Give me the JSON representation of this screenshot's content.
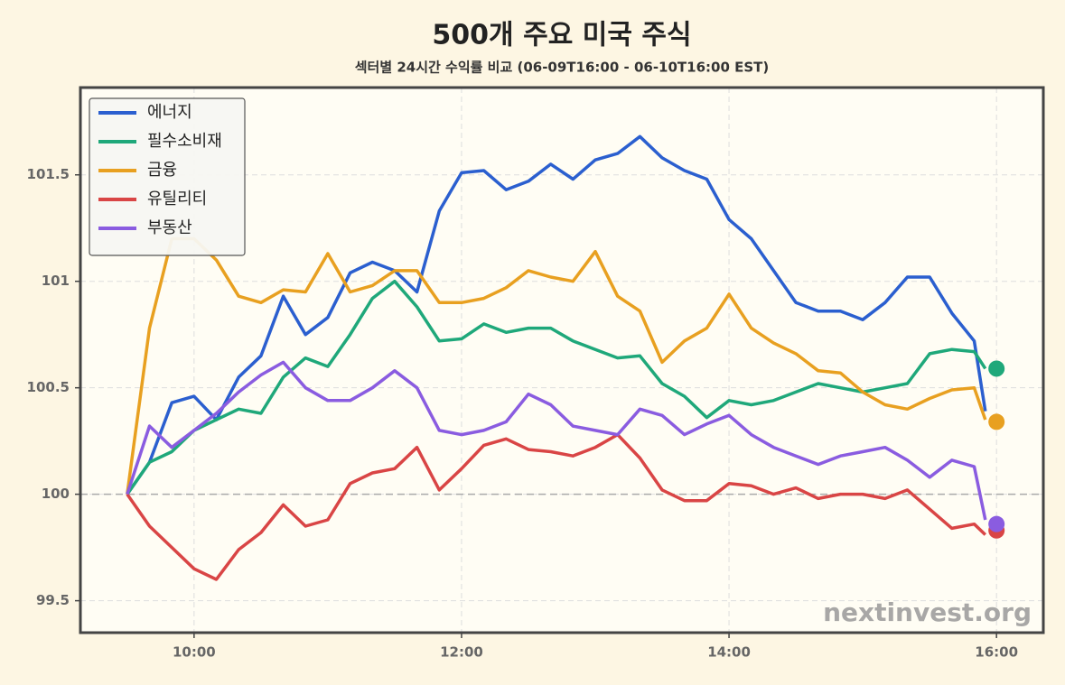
{
  "chart_data": {
    "type": "line",
    "title": "500개 주요 미국 주식",
    "subtitle": "섹터별 24시간 수익률 비교 (06-09T16:00 - 06-10T16:00 EST)",
    "watermark": "nextinvest.org",
    "x": [
      "09:30",
      "09:40",
      "09:50",
      "10:00",
      "10:10",
      "10:20",
      "10:30",
      "10:40",
      "10:50",
      "11:00",
      "11:10",
      "11:20",
      "11:30",
      "11:40",
      "11:50",
      "12:00",
      "12:10",
      "12:20",
      "12:30",
      "12:40",
      "12:50",
      "13:00",
      "13:10",
      "13:20",
      "13:30",
      "13:40",
      "13:50",
      "14:00",
      "14:10",
      "14:20",
      "14:30",
      "14:40",
      "14:50",
      "15:00",
      "15:10",
      "15:20",
      "15:30",
      "15:40",
      "15:50",
      "15:55"
    ],
    "xlim": [
      "09:09",
      "16:21"
    ],
    "xticks": [
      "10:00",
      "12:00",
      "14:00",
      "16:00"
    ],
    "ylim": [
      99.35,
      101.91
    ],
    "yticks": [
      99.5,
      100.0,
      100.5,
      101.0,
      101.5
    ],
    "baseline": 100.0,
    "grid": true,
    "legend": "upper-left",
    "end_x": "16:00",
    "series": [
      {
        "name": "에너지",
        "color": "#2b5fcf",
        "values": [
          100.0,
          100.15,
          100.43,
          100.46,
          100.35,
          100.55,
          100.65,
          100.93,
          100.75,
          100.83,
          101.04,
          101.09,
          101.05,
          100.95,
          101.33,
          101.51,
          101.52,
          101.43,
          101.47,
          101.55,
          101.48,
          101.57,
          101.6,
          101.68,
          101.58,
          101.52,
          101.48,
          101.29,
          101.2,
          101.05,
          100.9,
          100.86,
          100.86,
          100.82,
          100.9,
          101.02,
          101.02,
          100.85,
          100.72,
          100.39
        ]
      },
      {
        "name": "필수소비재",
        "color": "#1fa87a",
        "end_value": 100.59,
        "values": [
          100.0,
          100.15,
          100.2,
          100.3,
          100.35,
          100.4,
          100.38,
          100.55,
          100.64,
          100.6,
          100.75,
          100.92,
          101.0,
          100.88,
          100.72,
          100.73,
          100.8,
          100.76,
          100.78,
          100.78,
          100.72,
          100.68,
          100.64,
          100.65,
          100.52,
          100.46,
          100.36,
          100.44,
          100.42,
          100.44,
          100.48,
          100.52,
          100.5,
          100.48,
          100.5,
          100.52,
          100.66,
          100.68,
          100.67,
          100.59
        ]
      },
      {
        "name": "금융",
        "color": "#e8a020",
        "end_value": 100.34,
        "values": [
          100.0,
          100.78,
          101.2,
          101.2,
          101.1,
          100.93,
          100.9,
          100.96,
          100.95,
          101.13,
          100.95,
          100.98,
          101.05,
          101.05,
          100.9,
          100.9,
          100.92,
          100.97,
          101.05,
          101.02,
          101.0,
          101.14,
          100.93,
          100.86,
          100.62,
          100.72,
          100.78,
          100.94,
          100.78,
          100.71,
          100.66,
          100.58,
          100.57,
          100.48,
          100.42,
          100.4,
          100.45,
          100.49,
          100.5,
          100.35
        ]
      },
      {
        "name": "유틸리티",
        "color": "#d94545",
        "end_value": 99.83,
        "values": [
          100.0,
          99.85,
          99.75,
          99.65,
          99.6,
          99.74,
          99.82,
          99.95,
          99.85,
          99.88,
          100.05,
          100.1,
          100.12,
          100.22,
          100.02,
          100.12,
          100.23,
          100.26,
          100.21,
          100.2,
          100.18,
          100.22,
          100.28,
          100.17,
          100.02,
          99.97,
          99.97,
          100.05,
          100.04,
          100.0,
          100.03,
          99.98,
          100.0,
          100.0,
          99.98,
          100.02,
          99.93,
          99.84,
          99.86,
          99.81
        ]
      },
      {
        "name": "부동산",
        "color": "#8a5ce0",
        "end_value": 99.86,
        "values": [
          100.0,
          100.32,
          100.22,
          100.3,
          100.38,
          100.48,
          100.56,
          100.62,
          100.5,
          100.44,
          100.44,
          100.5,
          100.58,
          100.5,
          100.3,
          100.28,
          100.3,
          100.34,
          100.47,
          100.42,
          100.32,
          100.3,
          100.28,
          100.4,
          100.37,
          100.28,
          100.33,
          100.37,
          100.28,
          100.22,
          100.18,
          100.14,
          100.18,
          100.2,
          100.22,
          100.16,
          100.08,
          100.16,
          100.13,
          99.88
        ]
      }
    ]
  }
}
